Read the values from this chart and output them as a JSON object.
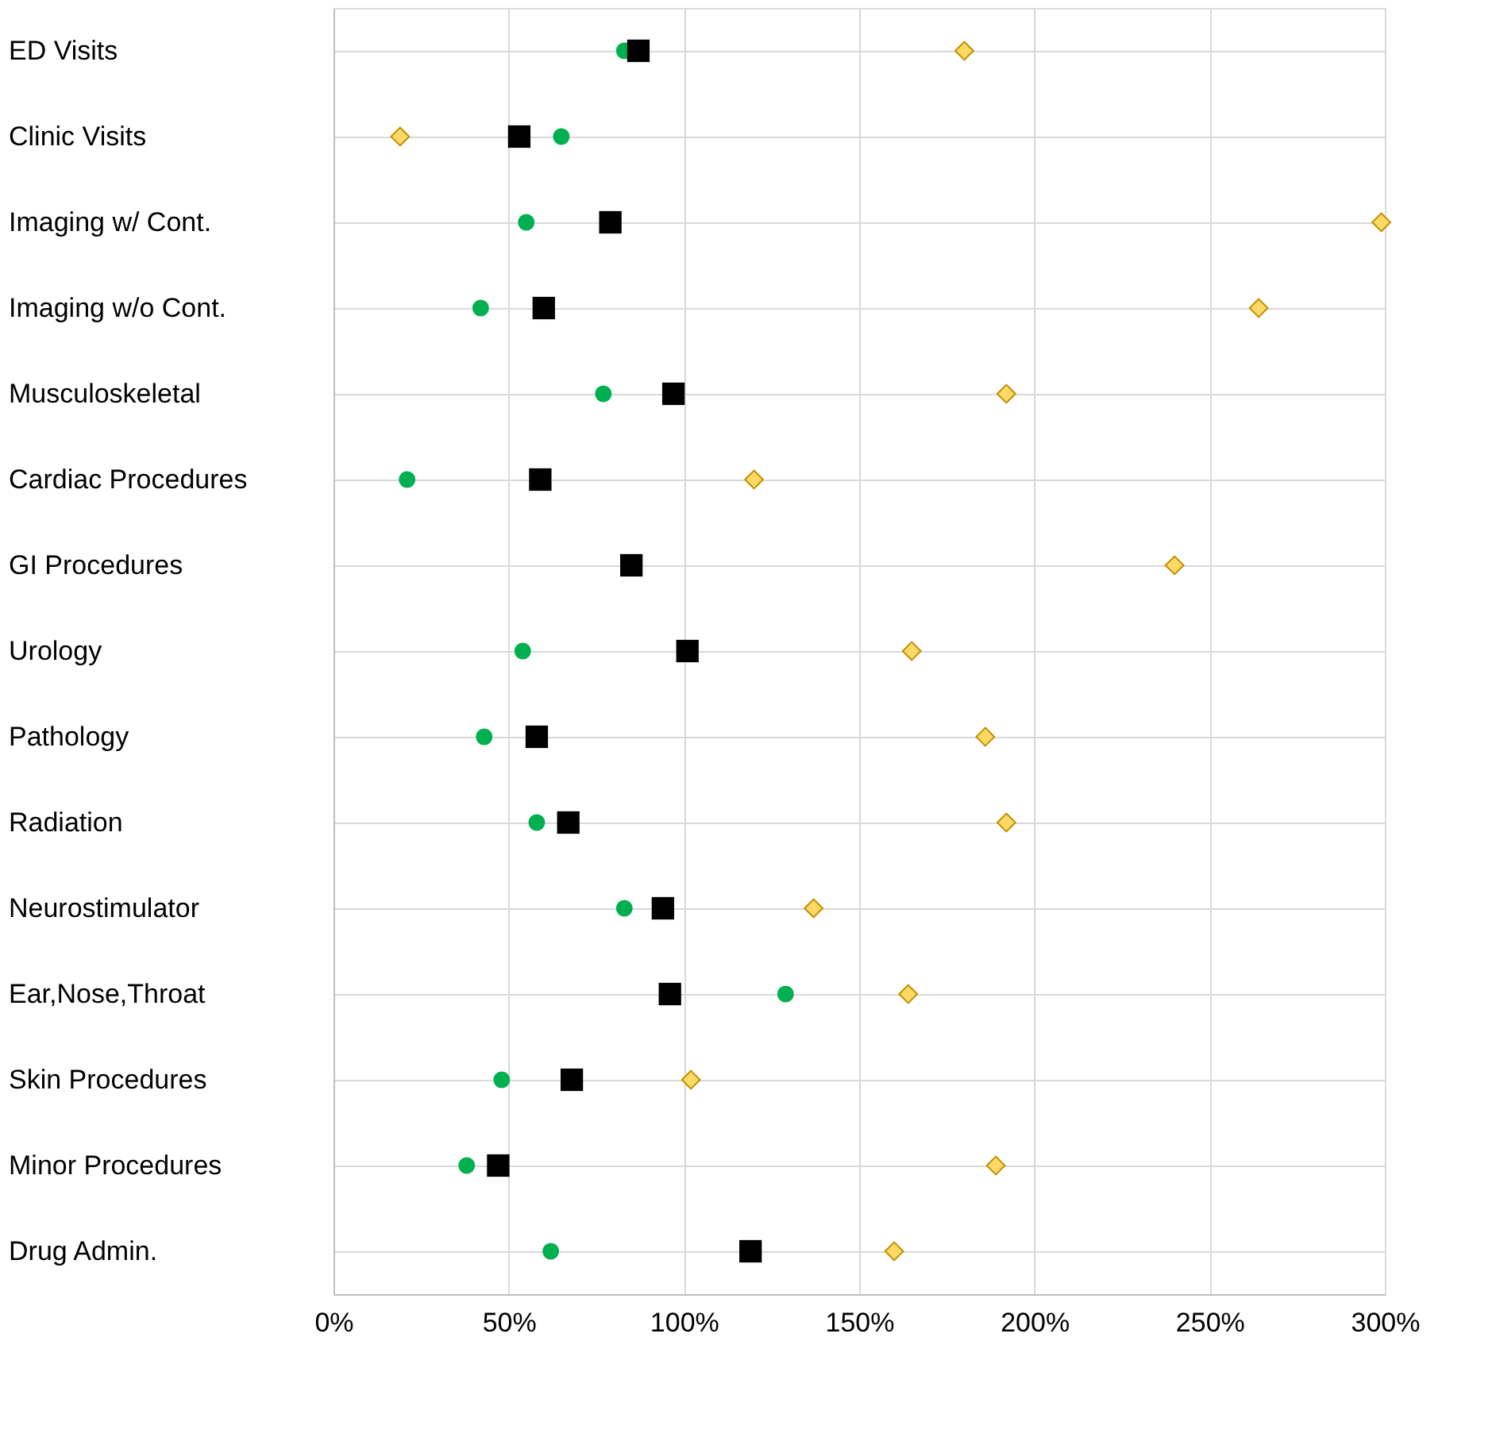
{
  "chart_data": {
    "type": "scatter",
    "orientation": "horizontal",
    "categories": [
      "ED Visits",
      "Clinic Visits",
      "Imaging w/ Cont.",
      "Imaging w/o Cont.",
      "Musculoskeletal",
      "Cardiac Procedures",
      "GI Procedures",
      "Urology",
      "Pathology",
      "Radiation",
      "Neurostimulator",
      "Ear,Nose,Throat",
      "Skin Procedures",
      "Minor Procedures",
      "Drug Admin."
    ],
    "series": [
      {
        "color": "#00b050",
        "marker": "circle",
        "values": [
          83,
          65,
          55,
          42,
          77,
          21,
          null,
          54,
          43,
          58,
          83,
          129,
          48,
          38,
          62
        ]
      },
      {
        "color": "#000000",
        "marker": "square",
        "values": [
          87,
          53,
          79,
          60,
          97,
          59,
          85,
          101,
          58,
          67,
          94,
          96,
          68,
          47,
          119
        ]
      },
      {
        "color": "#ffd966",
        "marker": "diamond",
        "values": [
          180,
          19,
          299,
          264,
          192,
          120,
          240,
          165,
          186,
          192,
          137,
          164,
          102,
          189,
          160
        ]
      }
    ],
    "xlim": [
      0,
      300
    ],
    "xticks": [
      {
        "value": 0,
        "label": "0%"
      },
      {
        "value": 50,
        "label": "50%"
      },
      {
        "value": 100,
        "label": "100%"
      },
      {
        "value": 150,
        "label": "150%"
      },
      {
        "value": 200,
        "label": "200%"
      },
      {
        "value": 250,
        "label": "250%"
      },
      {
        "value": 300,
        "label": "300%"
      }
    ],
    "grid": true
  }
}
